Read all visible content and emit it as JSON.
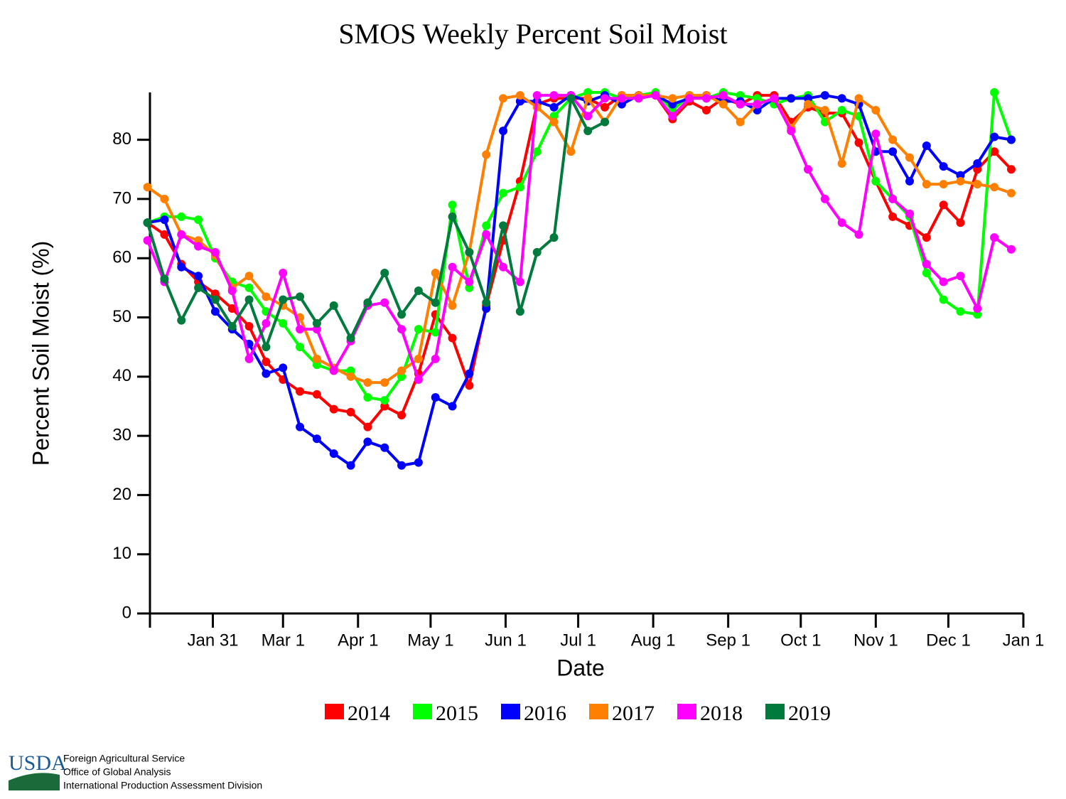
{
  "chart_data": {
    "type": "line",
    "title": "SMOS Weekly Percent Soil Moist",
    "x_label": "Date",
    "y_label": "Percent Soil Moist (%)",
    "x": [
      3,
      10,
      17,
      24,
      31,
      38,
      45,
      52,
      59,
      66,
      73,
      80,
      87,
      94,
      101,
      108,
      115,
      122,
      129,
      136,
      143,
      150,
      157,
      164,
      171,
      178,
      185,
      192,
      199,
      206,
      213,
      220,
      227,
      234,
      241,
      248,
      255,
      262,
      269,
      276,
      283,
      290,
      297,
      304,
      311,
      318,
      325,
      332,
      339,
      346,
      353,
      360
    ],
    "xlim": [
      4,
      365
    ],
    "xticks": [
      {
        "value": 30,
        "label": "Jan 31"
      },
      {
        "value": 59,
        "label": "Mar 1"
      },
      {
        "value": 90,
        "label": "Apr 1"
      },
      {
        "value": 120,
        "label": "May 1"
      },
      {
        "value": 151,
        "label": "Jun 1"
      },
      {
        "value": 181,
        "label": "Jul 1"
      },
      {
        "value": 212,
        "label": "Aug 1"
      },
      {
        "value": 243,
        "label": "Sep 1"
      },
      {
        "value": 273,
        "label": "Oct 1"
      },
      {
        "value": 304,
        "label": "Nov 1"
      },
      {
        "value": 334,
        "label": "Dec 1"
      },
      {
        "value": 365,
        "label": "Jan 1"
      }
    ],
    "ylim": [
      0,
      88
    ],
    "yticks": [
      0,
      10,
      20,
      30,
      40,
      50,
      60,
      70,
      80
    ],
    "legend": "bottom",
    "series": [
      {
        "name": "2014",
        "color": "#ff0000",
        "values": [
          66,
          64,
          59,
          56,
          54,
          51.5,
          48.5,
          42.5,
          39.5,
          37.5,
          37,
          34.5,
          34,
          31.5,
          35,
          33.5,
          40.5,
          50.5,
          46.5,
          38.5,
          52,
          63,
          73,
          86,
          87,
          87,
          87,
          85.5,
          87.5,
          87.5,
          87.5,
          83.5,
          86.5,
          85,
          87,
          86,
          87.5,
          87.5,
          83,
          85.5,
          84.5,
          84.5,
          79.5,
          73,
          67,
          65.5,
          63.5,
          69,
          66,
          75,
          78,
          75
        ]
      },
      {
        "name": "2015",
        "color": "#00ff00",
        "values": [
          66,
          67,
          67,
          66.5,
          60,
          56,
          55,
          51,
          49,
          45,
          42,
          41,
          41,
          36.5,
          36,
          40,
          48,
          47.5,
          69,
          55,
          65.5,
          71,
          72,
          78,
          84,
          87,
          88,
          88,
          87,
          87.5,
          88,
          85,
          87.5,
          87,
          88,
          87.5,
          87,
          86,
          87,
          87.5,
          83,
          85,
          84,
          73,
          70,
          67,
          57.5,
          53,
          51,
          50.5,
          88,
          80
        ]
      },
      {
        "name": "2016",
        "color": "#0000ff",
        "values": [
          66,
          66.5,
          58.5,
          57,
          51,
          48,
          45.5,
          40.5,
          41.5,
          31.5,
          29.5,
          27,
          25,
          29,
          28,
          25,
          25.5,
          36.5,
          35,
          40.5,
          51.5,
          81.5,
          86.5,
          86.5,
          85.5,
          87.5,
          86.5,
          87.5,
          86,
          87.5,
          87.5,
          86,
          87,
          87.5,
          86.5,
          86.5,
          85,
          87,
          87,
          87,
          87.5,
          87,
          86,
          78,
          78,
          73,
          79,
          75.5,
          74,
          76,
          80.5,
          80
        ]
      },
      {
        "name": "2017",
        "color": "#ff8000",
        "values": [
          72,
          70,
          64,
          63,
          60.5,
          55,
          57,
          53.5,
          52,
          50,
          43,
          41.5,
          40,
          39,
          39,
          41,
          43,
          57.5,
          52,
          61,
          77.5,
          87,
          87.5,
          85.5,
          83,
          78,
          87,
          83,
          87.5,
          87.5,
          87.5,
          87,
          87.5,
          87.5,
          86,
          83,
          86,
          87,
          82,
          86,
          85,
          76,
          87,
          85,
          80,
          77,
          72.5,
          72.5,
          73,
          72.5,
          72,
          71
        ]
      },
      {
        "name": "2018",
        "color": "#ff00ff",
        "values": [
          63,
          56,
          64,
          62,
          61,
          54.5,
          43,
          49,
          57.5,
          48,
          48,
          41,
          46,
          52,
          52.5,
          48,
          39.5,
          43,
          58.5,
          56,
          64,
          58.5,
          56,
          87.5,
          87.5,
          87.5,
          84,
          87,
          87,
          87,
          87.5,
          84,
          87,
          87,
          87.5,
          86,
          86,
          87,
          81.5,
          75,
          70,
          66,
          64,
          81,
          70,
          67.5,
          59,
          56,
          57,
          51.5,
          63.5,
          61.5
        ]
      },
      {
        "name": "2019",
        "color": "#007a3d",
        "values": [
          66,
          56.5,
          49.5,
          55,
          53,
          48.5,
          53,
          45,
          53,
          53.5,
          49,
          52,
          46.5,
          52.5,
          57.5,
          50.5,
          54.5,
          52.5,
          67,
          61,
          52.5,
          65.5,
          51,
          61,
          63.5,
          87,
          81.5,
          83,
          null,
          null,
          null,
          null,
          null,
          null,
          null,
          null,
          null,
          null,
          null,
          null,
          null,
          null,
          null,
          null,
          null,
          null,
          null,
          null,
          null,
          null,
          null,
          null
        ]
      }
    ]
  },
  "footer": {
    "logo": "USDA",
    "lines": [
      "Foreign Agricultural Service",
      "Office of Global Analysis",
      "International Production Assessment Division"
    ]
  }
}
